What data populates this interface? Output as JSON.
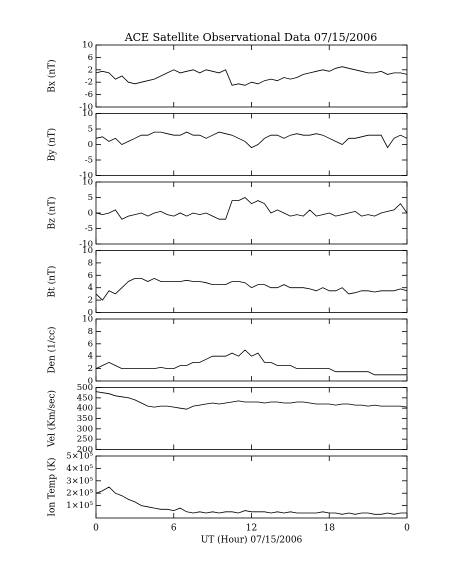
{
  "title": "ACE Satellite Observational Data   07/15/2006",
  "chart_data": [
    {
      "type": "line",
      "ylabel": "Bx (nT)",
      "ylim": [
        -10,
        10
      ],
      "yticks": [
        10,
        6,
        2,
        -2,
        -6,
        -10
      ],
      "xlim": [
        0,
        24
      ],
      "xticks": [
        0,
        6,
        12,
        18,
        {
          "value": 24,
          "label": "0"
        }
      ],
      "x": [
        0,
        0.5,
        1,
        1.5,
        2,
        2.5,
        3,
        3.5,
        4,
        4.5,
        5,
        5.5,
        6,
        6.5,
        7,
        7.5,
        8,
        8.5,
        9,
        9.5,
        10,
        10.5,
        11,
        11.5,
        12,
        12.5,
        13,
        13.5,
        14,
        14.5,
        15,
        15.5,
        16,
        16.5,
        17,
        17.5,
        18,
        18.5,
        19,
        19.5,
        20,
        20.5,
        21,
        21.5,
        22,
        22.5,
        23,
        23.5,
        24
      ],
      "values": [
        1,
        1.5,
        1,
        -1,
        0,
        -2,
        -2.5,
        -2,
        -1.5,
        -1,
        0,
        1,
        2,
        1,
        1.5,
        2,
        1,
        2,
        1.5,
        1,
        2,
        -3,
        -2.5,
        -3,
        -2,
        -2.5,
        -1.5,
        -1,
        -1.5,
        -0.5,
        -1,
        -0.5,
        0.5,
        1,
        1.5,
        2,
        1.5,
        2.5,
        3,
        2.5,
        2,
        1.5,
        1,
        1,
        1.5,
        0.5,
        1,
        1,
        0.5
      ],
      "color": "#000000"
    },
    {
      "type": "line",
      "ylabel": "By (nT)",
      "ylim": [
        -10,
        10
      ],
      "yticks": [
        10,
        5,
        0,
        -5,
        -10
      ],
      "xlim": [
        0,
        24
      ],
      "xticks": [
        0,
        6,
        12,
        18,
        {
          "value": 24,
          "label": "0"
        }
      ],
      "x": [
        0,
        0.5,
        1,
        1.5,
        2,
        2.5,
        3,
        3.5,
        4,
        4.5,
        5,
        5.5,
        6,
        6.5,
        7,
        7.5,
        8,
        8.5,
        9,
        9.5,
        10,
        10.5,
        11,
        11.5,
        12,
        12.5,
        13,
        13.5,
        14,
        14.5,
        15,
        15.5,
        16,
        16.5,
        17,
        17.5,
        18,
        18.5,
        19,
        19.5,
        20,
        20.5,
        21,
        21.5,
        22,
        22.5,
        23,
        23.5,
        24
      ],
      "values": [
        2,
        2.5,
        1,
        2,
        0,
        1,
        2,
        3,
        3,
        4,
        4,
        3.5,
        3,
        3,
        4,
        3,
        3,
        2,
        3,
        4,
        3.5,
        3,
        2,
        1,
        -1,
        0,
        2,
        3,
        3,
        2,
        3,
        3.5,
        3,
        3,
        3.5,
        3,
        2,
        1,
        0,
        2,
        2,
        2.5,
        3,
        3,
        3,
        -1,
        2,
        3,
        2
      ],
      "color": "#000000"
    },
    {
      "type": "line",
      "ylabel": "Bz (nT)",
      "ylim": [
        -10,
        10
      ],
      "yticks": [
        10,
        5,
        0,
        -5,
        -10
      ],
      "xlim": [
        0,
        24
      ],
      "xticks": [
        0,
        6,
        12,
        18,
        {
          "value": 24,
          "label": "0"
        }
      ],
      "x": [
        0,
        0.5,
        1,
        1.5,
        2,
        2.5,
        3,
        3.5,
        4,
        4.5,
        5,
        5.5,
        6,
        6.5,
        7,
        7.5,
        8,
        8.5,
        9,
        9.5,
        10,
        10.5,
        11,
        11.5,
        12,
        12.5,
        13,
        13.5,
        14,
        14.5,
        15,
        15.5,
        16,
        16.5,
        17,
        17.5,
        18,
        18.5,
        19,
        19.5,
        20,
        20.5,
        21,
        21.5,
        22,
        22.5,
        23,
        23.5,
        24
      ],
      "values": [
        0,
        -0.5,
        0,
        1,
        -2,
        -1,
        -0.5,
        0,
        -1,
        0,
        0.5,
        -0.5,
        -1,
        0,
        -1,
        0,
        -0.5,
        0,
        -1,
        -2,
        -2,
        4,
        4,
        5,
        3,
        4,
        3,
        0,
        1,
        0,
        -1,
        -0.5,
        -1,
        1,
        -1,
        -0.5,
        0,
        -1,
        -0.5,
        0,
        0.5,
        -1,
        -0.5,
        -1,
        0,
        0.5,
        1,
        3,
        0
      ],
      "color": "#000000"
    },
    {
      "type": "line",
      "ylabel": "Bt (nT)",
      "ylim": [
        0,
        10
      ],
      "yticks": [
        10,
        8,
        6,
        4,
        2,
        0
      ],
      "xlim": [
        0,
        24
      ],
      "xticks": [
        0,
        6,
        12,
        18,
        {
          "value": 24,
          "label": "0"
        }
      ],
      "x": [
        0,
        0.5,
        1,
        1.5,
        2,
        2.5,
        3,
        3.5,
        4,
        4.5,
        5,
        5.5,
        6,
        6.5,
        7,
        7.5,
        8,
        8.5,
        9,
        9.5,
        10,
        10.5,
        11,
        11.5,
        12,
        12.5,
        13,
        13.5,
        14,
        14.5,
        15,
        15.5,
        16,
        16.5,
        17,
        17.5,
        18,
        18.5,
        19,
        19.5,
        20,
        20.5,
        21,
        21.5,
        22,
        22.5,
        23,
        23.5,
        24
      ],
      "values": [
        3,
        2,
        3.5,
        3,
        4,
        5,
        5.5,
        5.5,
        5,
        5.5,
        5,
        5,
        5,
        5,
        5.2,
        5,
        5,
        4.8,
        4.5,
        4.5,
        4.5,
        5,
        5,
        4.8,
        4,
        4.5,
        4.5,
        4,
        4,
        4.5,
        4,
        4,
        4,
        3.8,
        3.5,
        4,
        3.5,
        3.5,
        4,
        3,
        3.2,
        3.5,
        3.5,
        3.3,
        3.5,
        3.5,
        3.5,
        3.8,
        3.5
      ],
      "color": "#000000"
    },
    {
      "type": "line",
      "ylabel": "Den (1/cc)",
      "ylim": [
        0,
        10
      ],
      "yticks": [
        10,
        8,
        6,
        4,
        2,
        0
      ],
      "xlim": [
        0,
        24
      ],
      "xticks": [
        0,
        6,
        12,
        18,
        {
          "value": 24,
          "label": "0"
        }
      ],
      "x": [
        0,
        0.5,
        1,
        1.5,
        2,
        2.5,
        3,
        3.5,
        4,
        4.5,
        5,
        5.5,
        6,
        6.5,
        7,
        7.5,
        8,
        8.5,
        9,
        9.5,
        10,
        10.5,
        11,
        11.5,
        12,
        12.5,
        13,
        13.5,
        14,
        14.5,
        15,
        15.5,
        16,
        16.5,
        17,
        17.5,
        18,
        18.5,
        19,
        19.5,
        20,
        20.5,
        21,
        21.5,
        22,
        22.5,
        23,
        23.5,
        24
      ],
      "values": [
        2,
        2.5,
        3,
        2.5,
        2,
        2,
        2,
        2,
        2,
        2,
        2.2,
        2,
        2,
        2.5,
        2.5,
        3,
        3,
        3.5,
        4,
        4,
        4,
        4.5,
        4,
        5,
        4,
        4.5,
        3,
        3,
        2.5,
        2.5,
        2.5,
        2,
        2,
        2,
        2,
        2,
        2,
        1.5,
        1.5,
        1.5,
        1.5,
        1.5,
        1.5,
        1,
        1,
        1,
        1,
        1,
        1
      ],
      "color": "#000000"
    },
    {
      "type": "line",
      "ylabel": "Vel (Km/sec)",
      "ylim": [
        200,
        500
      ],
      "yticks": [
        500,
        450,
        400,
        350,
        300,
        250,
        200
      ],
      "xlim": [
        0,
        24
      ],
      "xticks": [
        0,
        6,
        12,
        18,
        {
          "value": 24,
          "label": "0"
        }
      ],
      "x": [
        0,
        0.5,
        1,
        1.5,
        2,
        2.5,
        3,
        3.5,
        4,
        4.5,
        5,
        5.5,
        6,
        6.5,
        7,
        7.5,
        8,
        8.5,
        9,
        9.5,
        10,
        10.5,
        11,
        11.5,
        12,
        12.5,
        13,
        13.5,
        14,
        14.5,
        15,
        15.5,
        16,
        16.5,
        17,
        17.5,
        18,
        18.5,
        19,
        19.5,
        20,
        20.5,
        21,
        21.5,
        22,
        22.5,
        23,
        23.5,
        24
      ],
      "values": [
        480,
        475,
        470,
        460,
        455,
        450,
        440,
        425,
        410,
        405,
        410,
        410,
        405,
        400,
        395,
        410,
        415,
        420,
        425,
        420,
        425,
        430,
        435,
        430,
        430,
        430,
        425,
        430,
        430,
        425,
        425,
        430,
        430,
        425,
        420,
        420,
        420,
        415,
        420,
        420,
        415,
        415,
        410,
        415,
        410,
        410,
        410,
        410,
        405
      ],
      "color": "#000000"
    },
    {
      "type": "line",
      "ylabel": "Ion Temp (K)",
      "ylim": [
        0,
        500000
      ],
      "yticks": [
        {
          "value": 500000,
          "label": "5×10⁵"
        },
        {
          "value": 400000,
          "label": "4×10⁵"
        },
        {
          "value": 300000,
          "label": "3×10⁵"
        },
        {
          "value": 200000,
          "label": "2×10⁵"
        },
        {
          "value": 100000,
          "label": "1×10⁵"
        }
      ],
      "xlim": [
        0,
        24
      ],
      "xticks": [
        0,
        6,
        12,
        18,
        {
          "value": 24,
          "label": "0"
        }
      ],
      "xlabel": "UT (Hour)   07/15/2006",
      "x": [
        0,
        0.5,
        1,
        1.5,
        2,
        2.5,
        3,
        3.5,
        4,
        4.5,
        5,
        5.5,
        6,
        6.5,
        7,
        7.5,
        8,
        8.5,
        9,
        9.5,
        10,
        10.5,
        11,
        11.5,
        12,
        12.5,
        13,
        13.5,
        14,
        14.5,
        15,
        15.5,
        16,
        16.5,
        17,
        17.5,
        18,
        18.5,
        19,
        19.5,
        20,
        20.5,
        21,
        21.5,
        22,
        22.5,
        23,
        23.5,
        24
      ],
      "values": [
        200000,
        220000,
        250000,
        200000,
        180000,
        150000,
        130000,
        100000,
        90000,
        80000,
        70000,
        70000,
        60000,
        80000,
        50000,
        40000,
        50000,
        40000,
        50000,
        40000,
        50000,
        50000,
        40000,
        60000,
        50000,
        50000,
        50000,
        40000,
        50000,
        40000,
        50000,
        40000,
        40000,
        40000,
        40000,
        50000,
        40000,
        40000,
        30000,
        40000,
        30000,
        40000,
        40000,
        30000,
        30000,
        40000,
        30000,
        40000,
        40000
      ],
      "color": "#000000"
    }
  ]
}
